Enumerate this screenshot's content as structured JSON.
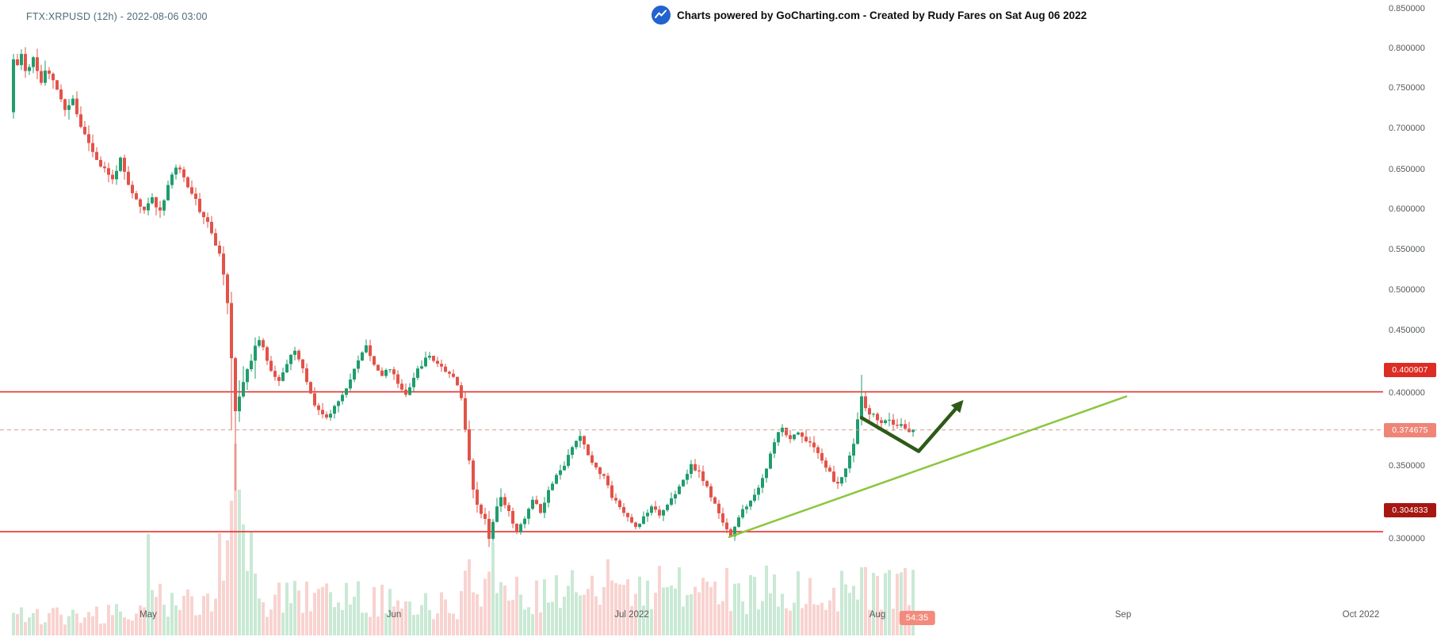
{
  "header": {
    "symbol_info": "FTX:XRPUSD (12h) - 2022-08-06 03:00",
    "attribution": "Charts powered by GoCharting.com - Created by Rudy Fares on Sat Aug 06 2022"
  },
  "colors": {
    "up": "#1f9d6d",
    "down": "#e25349",
    "vol_up": "#c9e9d4",
    "vol_down": "#f8d3d0",
    "level": "#e5302c",
    "dashed": "#cf9d95",
    "badge_resistance": "#dd2c23",
    "badge_support": "#a61711",
    "badge_current": "#ee8577",
    "badge_timer": "#f28b7d",
    "trendline": "#8cc63f",
    "arrow": "#2e5a17",
    "logo": "#2263cf"
  },
  "chart_data": {
    "type": "candlestick",
    "symbol": "FTX:XRPUSD",
    "interval": "12h",
    "as_of": "2022-08-06 03:00",
    "title": "",
    "xlabel": "",
    "ylabel": "",
    "grid": false,
    "y_axis": {
      "scale": "log",
      "range": [
        0.29,
        0.86
      ],
      "ticks": [
        {
          "price": 0.85,
          "label": "0.850000"
        },
        {
          "price": 0.8,
          "label": "0.800000"
        },
        {
          "price": 0.75,
          "label": "0.750000"
        },
        {
          "price": 0.7,
          "label": "0.700000"
        },
        {
          "price": 0.65,
          "label": "0.650000"
        },
        {
          "price": 0.6,
          "label": "0.600000"
        },
        {
          "price": 0.55,
          "label": "0.550000"
        },
        {
          "price": 0.5,
          "label": "0.500000"
        },
        {
          "price": 0.45,
          "label": "0.450000"
        },
        {
          "price": 0.4,
          "label": "0.400000"
        },
        {
          "price": 0.35,
          "label": "0.350000"
        },
        {
          "price": 0.3,
          "label": "0.300000"
        }
      ]
    },
    "x_axis": {
      "start_date": "2022-04-14",
      "labels": [
        {
          "text": "May",
          "day": 17
        },
        {
          "text": "Jun",
          "day": 48
        },
        {
          "text": "Jul 2022",
          "day": 78
        },
        {
          "text": "Aug",
          "day": 109
        },
        {
          "text": "Sep",
          "day": 140
        },
        {
          "text": "Oct 2022",
          "day": 170
        }
      ]
    },
    "levels": [
      {
        "price": 0.400907,
        "label": "0.400907",
        "type": "resistance"
      },
      {
        "price": 0.304833,
        "label": "0.304833",
        "type": "support"
      }
    ],
    "current_price": {
      "price": 0.374675,
      "label": "0.374675"
    },
    "countdown": "54:35",
    "trendline": {
      "points": [
        [
          90.2,
          0.301
        ],
        [
          140.5,
          0.3978
        ]
      ]
    },
    "projection_arrow": {
      "points": [
        [
          107.0,
          0.383
        ],
        [
          114.2,
          0.36
        ],
        [
          119.5,
          0.393
        ]
      ]
    },
    "path_interval_days": 0.5,
    "price_path": [
      0.72,
      0.786,
      0.776,
      0.792,
      0.772,
      0.779,
      0.788,
      0.772,
      0.758,
      0.77,
      0.766,
      0.757,
      0.749,
      0.736,
      0.721,
      0.729,
      0.737,
      0.718,
      0.703,
      0.692,
      0.683,
      0.672,
      0.663,
      0.655,
      0.65,
      0.643,
      0.637,
      0.651,
      0.663,
      0.644,
      0.629,
      0.619,
      0.611,
      0.604,
      0.597,
      0.607,
      0.615,
      0.605,
      0.597,
      0.614,
      0.631,
      0.644,
      0.653,
      0.647,
      0.639,
      0.631,
      0.622,
      0.611,
      0.599,
      0.591,
      0.583,
      0.571,
      0.557,
      0.543,
      0.524,
      0.479,
      0.424,
      0.388,
      0.401,
      0.411,
      0.421,
      0.429,
      0.437,
      0.442,
      0.435,
      0.427,
      0.419,
      0.413,
      0.409,
      0.417,
      0.423,
      0.429,
      0.433,
      0.427,
      0.419,
      0.409,
      0.399,
      0.393,
      0.389,
      0.385,
      0.383,
      0.387,
      0.391,
      0.395,
      0.4,
      0.405,
      0.411,
      0.419,
      0.425,
      0.432,
      0.439,
      0.431,
      0.423,
      0.418,
      0.414,
      0.417,
      0.42,
      0.414,
      0.408,
      0.403,
      0.399,
      0.406,
      0.413,
      0.418,
      0.423,
      0.427,
      0.43,
      0.427,
      0.424,
      0.421,
      0.418,
      0.416,
      0.414,
      0.407,
      0.397,
      0.374,
      0.354,
      0.335,
      0.325,
      0.319,
      0.313,
      0.301,
      0.313,
      0.321,
      0.329,
      0.324,
      0.318,
      0.311,
      0.305,
      0.309,
      0.314,
      0.321,
      0.328,
      0.323,
      0.319,
      0.326,
      0.333,
      0.339,
      0.344,
      0.347,
      0.35,
      0.357,
      0.363,
      0.368,
      0.371,
      0.365,
      0.358,
      0.353,
      0.348,
      0.345,
      0.343,
      0.336,
      0.329,
      0.326,
      0.323,
      0.318,
      0.314,
      0.311,
      0.308,
      0.311,
      0.315,
      0.319,
      0.323,
      0.32,
      0.317,
      0.32,
      0.324,
      0.327,
      0.33,
      0.335,
      0.34,
      0.345,
      0.351,
      0.348,
      0.345,
      0.34,
      0.335,
      0.329,
      0.323,
      0.317,
      0.312,
      0.307,
      0.302,
      0.308,
      0.314,
      0.319,
      0.323,
      0.326,
      0.329,
      0.335,
      0.341,
      0.349,
      0.357,
      0.365,
      0.373,
      0.377,
      0.372,
      0.368,
      0.371,
      0.373,
      0.371,
      0.368,
      0.365,
      0.362,
      0.359,
      0.355,
      0.35,
      0.345,
      0.34,
      0.338,
      0.341,
      0.349,
      0.357,
      0.365,
      0.381,
      0.397,
      0.389,
      0.384,
      0.387,
      0.382,
      0.378,
      0.38,
      0.382,
      0.378,
      0.376,
      0.378,
      0.376,
      0.374,
      0.3747
    ],
    "high_overrides": {
      "214": 0.4145
    },
    "low_overrides": {
      "55": 0.375,
      "56": 0.333
    },
    "volume_overrides": {
      "34": 128,
      "54": 120,
      "55": 170,
      "56": 242,
      "57": 184,
      "58": 140,
      "115": 96,
      "121": 118,
      "150": 96,
      "190": 88,
      "214": 86
    }
  }
}
